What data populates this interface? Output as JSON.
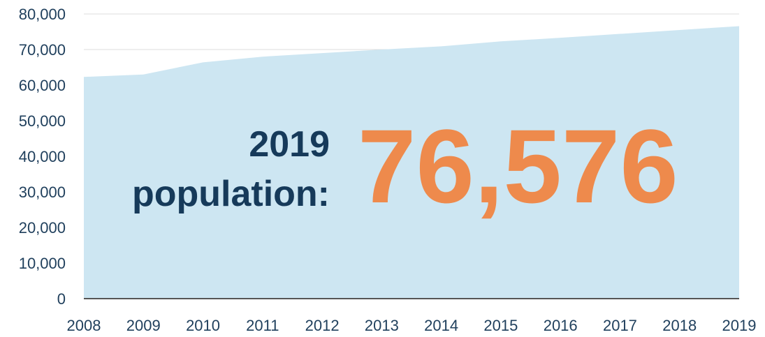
{
  "chart_data": {
    "type": "area",
    "categories": [
      "2008",
      "2009",
      "2010",
      "2011",
      "2012",
      "2013",
      "2014",
      "2015",
      "2016",
      "2017",
      "2018",
      "2019"
    ],
    "values": [
      62300,
      63000,
      66400,
      68000,
      69000,
      70000,
      70900,
      72300,
      73300,
      74400,
      75500,
      76576
    ],
    "ylim": [
      0,
      80000
    ],
    "yticks": [
      0,
      10000,
      20000,
      30000,
      40000,
      50000,
      60000,
      70000,
      80000
    ],
    "ytick_labels": [
      "0",
      "10,000",
      "20,000",
      "30,000",
      "40,000",
      "50,000",
      "60,000",
      "70,000",
      "80,000"
    ],
    "grid": true,
    "legend": "none",
    "colors": {
      "area": "#cde6f2",
      "axis_text": "#1f3f5c",
      "gridline": "#dcdcdc",
      "baseline": "#555555"
    }
  },
  "callout": {
    "line1": "2019",
    "line2": "population:",
    "value": "76,576",
    "label_color": "#163a5a",
    "value_color": "#ee8a4c"
  }
}
